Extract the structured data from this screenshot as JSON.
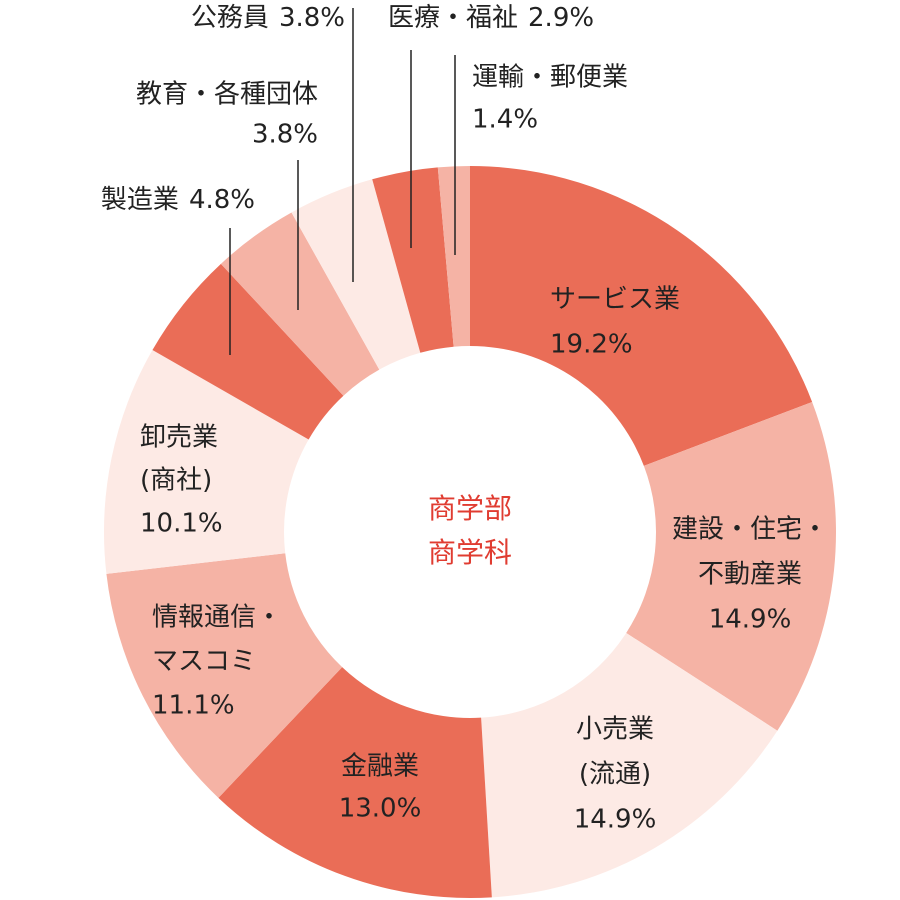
{
  "chart_data": {
    "type": "donut",
    "center_label": [
      "商学部",
      "商学科"
    ],
    "categories": [
      [
        "サービス業"
      ],
      [
        "建設・住宅・",
        "不動産業"
      ],
      [
        "小売業",
        "(流通)"
      ],
      [
        "金融業"
      ],
      [
        "情報通信・",
        "マスコミ"
      ],
      [
        "卸売業",
        "(商社)"
      ],
      [
        "製造業"
      ],
      [
        "教育・各種団体"
      ],
      [
        "公務員"
      ],
      [
        "医療・福祉"
      ],
      [
        "運輸・郵便業"
      ]
    ],
    "values": [
      19.2,
      14.9,
      14.9,
      13.0,
      11.1,
      10.1,
      4.8,
      3.8,
      3.8,
      2.9,
      1.4
    ],
    "value_labels": [
      "19.2%",
      "14.9%",
      "14.9%",
      "13.0%",
      "11.1%",
      "10.1%",
      "4.8%",
      "3.8%",
      "3.8%",
      "2.9%",
      "1.4%"
    ],
    "colors": [
      "#ea6d57",
      "#f5b3a5",
      "#fdeae5",
      "#ea6d57",
      "#f5b3a5",
      "#fdeae5",
      "#ea6d57",
      "#f5b3a5",
      "#fdeae5",
      "#ea6d57",
      "#f5b3a5"
    ],
    "center_color": "#e03c31"
  }
}
